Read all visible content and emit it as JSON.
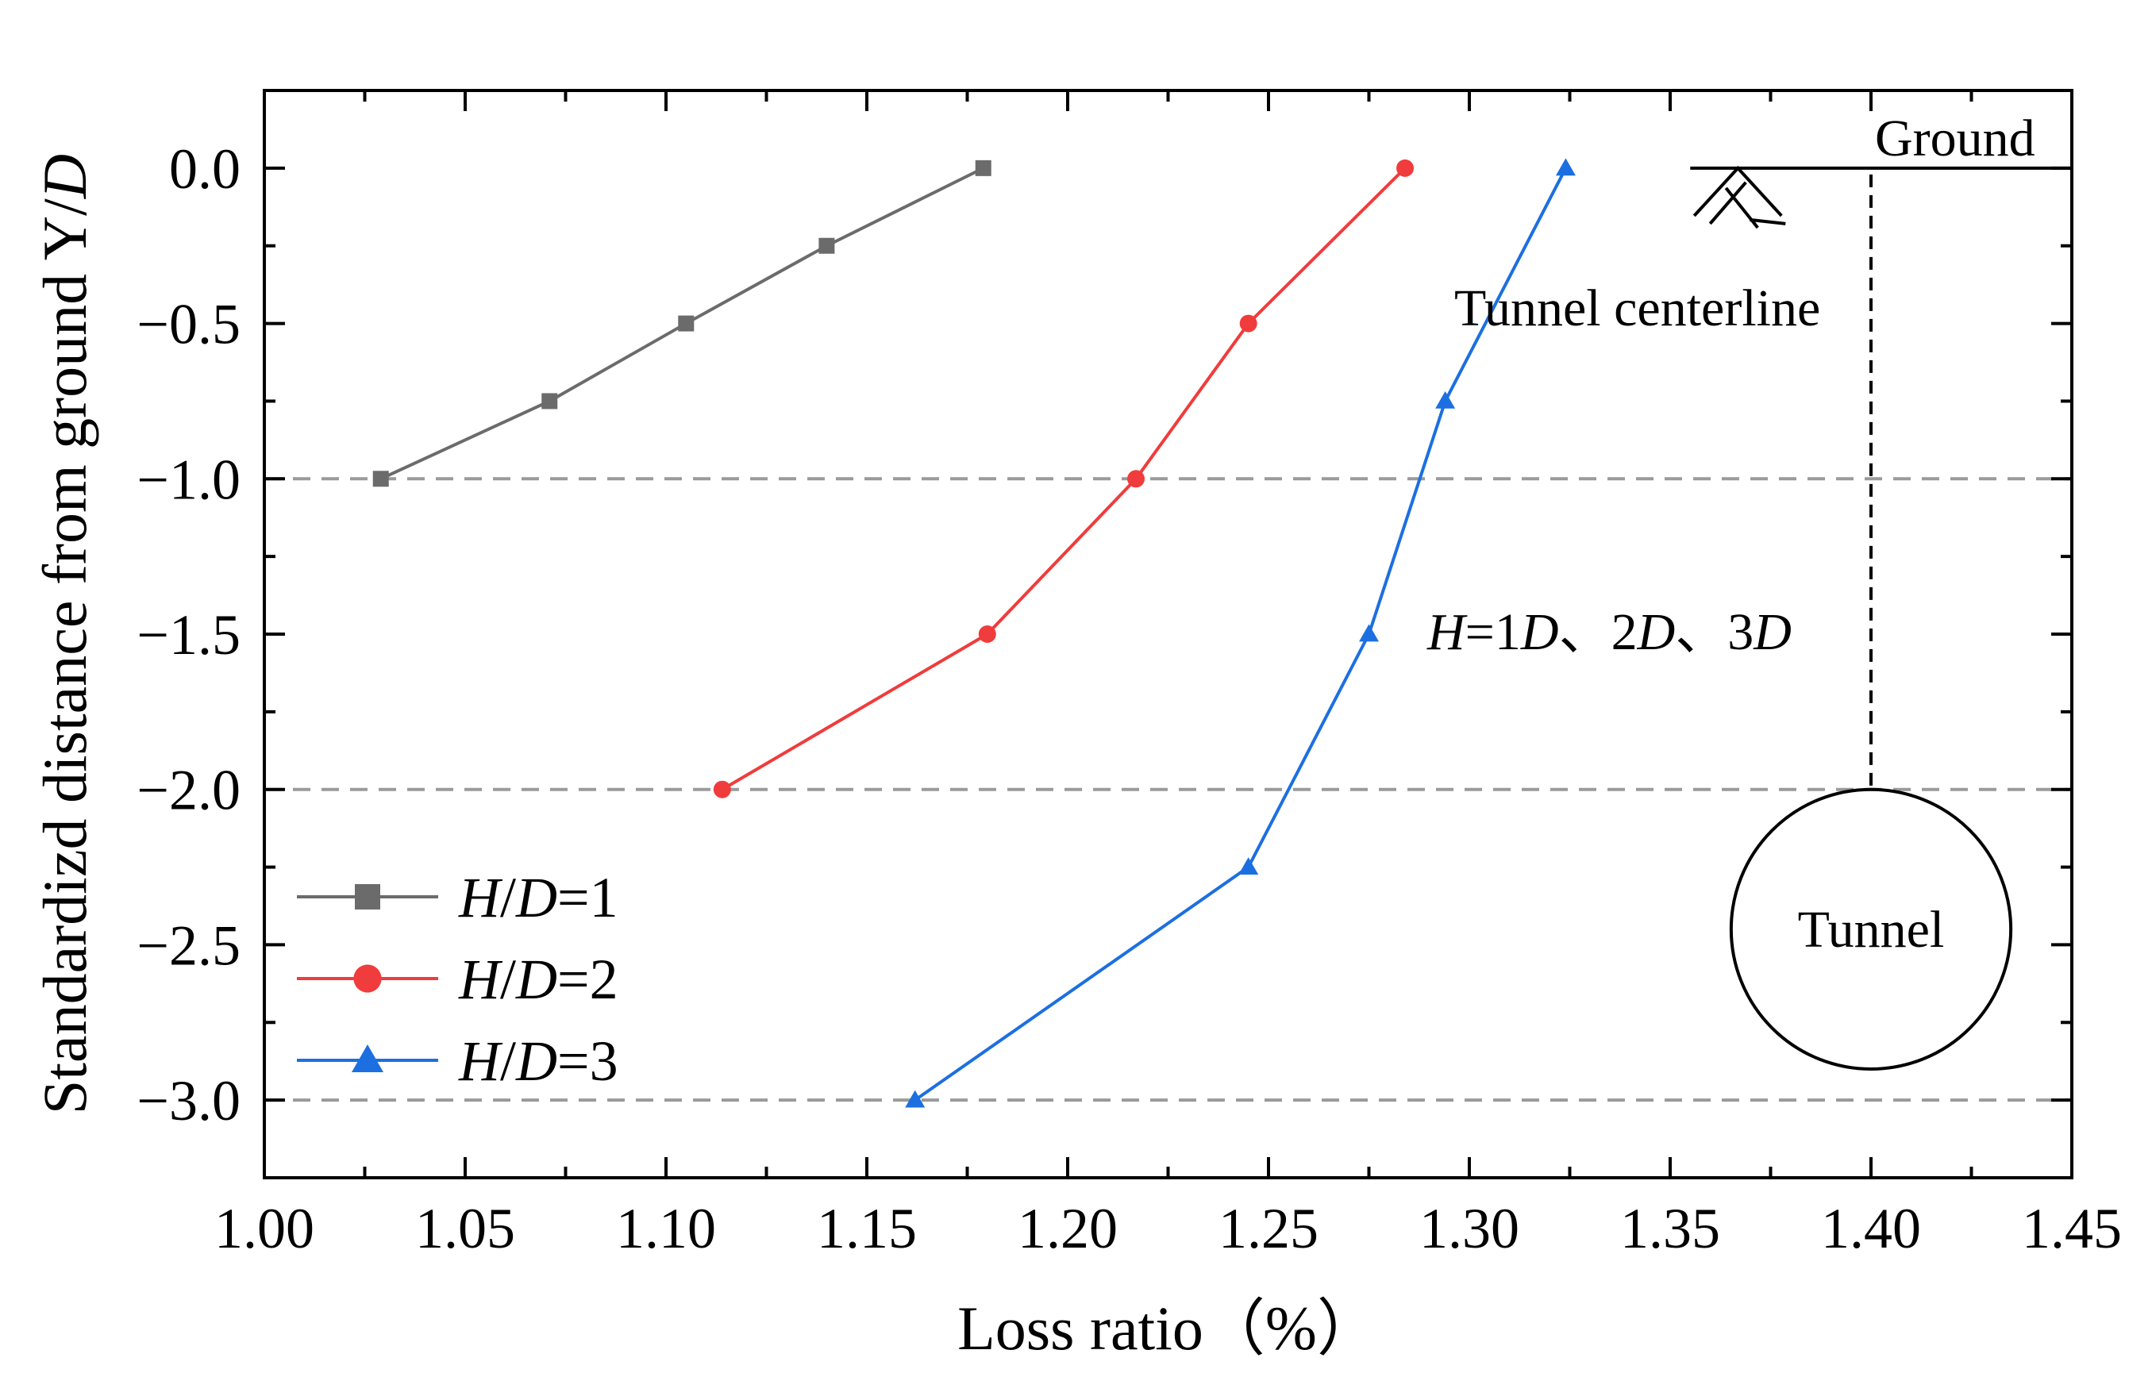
{
  "chart_data": {
    "type": "line",
    "title": "",
    "xlabel": "Loss ratio（%）",
    "ylabel": "Standardizd distance from ground Y/D",
    "xlim": [
      1.0,
      1.45
    ],
    "ylim": [
      -3.25,
      0.25
    ],
    "xticks": [
      1.0,
      1.05,
      1.1,
      1.15,
      1.2,
      1.25,
      1.3,
      1.35,
      1.4,
      1.45
    ],
    "xtick_labels": [
      "1.00",
      "1.05",
      "1.10",
      "1.15",
      "1.20",
      "1.25",
      "1.30",
      "1.35",
      "1.40",
      "1.45"
    ],
    "yticks": [
      0.0,
      -0.5,
      -1.0,
      -1.5,
      -2.0,
      -2.5,
      -3.0
    ],
    "ytick_labels": [
      "0.0",
      "−0.5",
      "−1.0",
      "−1.5",
      "−2.0",
      "−2.5",
      "−3.0"
    ],
    "reference_lines_y": [
      -1.0,
      -2.0,
      -3.0
    ],
    "legend_position": "bottom-left",
    "series": [
      {
        "name": "H/D=1",
        "label_italic_1": "H",
        "label_sep": "/",
        "label_italic_2": "D",
        "label_rest": "=1",
        "color": "#6b6b6b",
        "marker": "square",
        "x": [
          1.029,
          1.071,
          1.105,
          1.14,
          1.179
        ],
        "y": [
          -1.0,
          -0.75,
          -0.5,
          -0.25,
          0.0
        ]
      },
      {
        "name": "H/D=2",
        "label_italic_1": "H",
        "label_sep": "/",
        "label_italic_2": "D",
        "label_rest": "=2",
        "color": "#f03c3c",
        "marker": "circle",
        "x": [
          1.114,
          1.18,
          1.217,
          1.245,
          1.284
        ],
        "y": [
          -2.0,
          -1.5,
          -1.0,
          -0.5,
          0.0
        ]
      },
      {
        "name": "H/D=3",
        "label_italic_1": "H",
        "label_sep": "/",
        "label_italic_2": "D",
        "label_rest": "=3",
        "color": "#1c6fe0",
        "marker": "triangle",
        "x": [
          1.162,
          1.245,
          1.275,
          1.294,
          1.324
        ],
        "y": [
          -3.0,
          -2.25,
          -1.5,
          -0.75,
          0.0
        ]
      }
    ],
    "annotations": {
      "ground": "Ground",
      "tunnel_centerline": "Tunnel centerline",
      "tunnel": "Tunnel",
      "depths_h": "H",
      "depths_1": "=1",
      "depths_d1": "D",
      "depths_2": "、2",
      "depths_d2": "D",
      "depths_3": "、3",
      "depths_d3": "D"
    },
    "schematic": {
      "centerline_x": 1.4,
      "tunnel_center_y": -2.45,
      "tunnel_radius_y": 0.45,
      "ground_line_x": [
        1.355,
        1.45
      ]
    }
  }
}
